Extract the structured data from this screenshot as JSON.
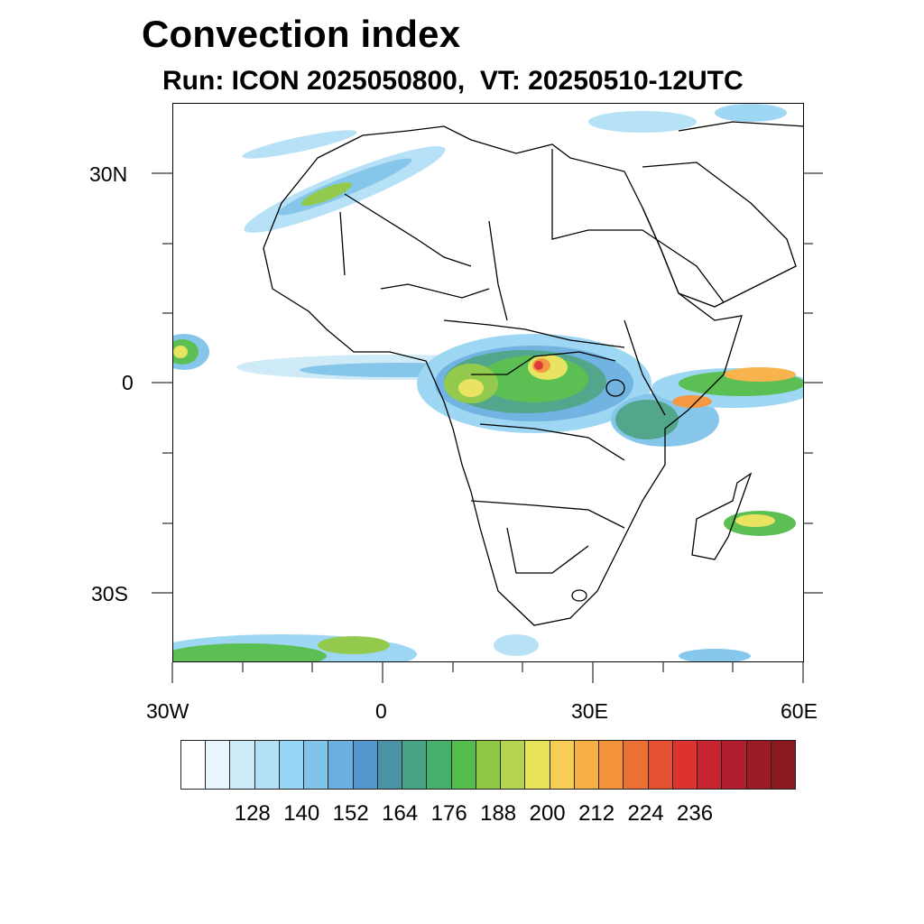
{
  "header": {
    "title": "Convection index",
    "subtitle": "Run: ICON 2025050800,  VT: 20250510-12UTC"
  },
  "axes": {
    "x_ticks": [
      "30W",
      "0",
      "30E",
      "60E"
    ],
    "y_ticks": [
      "30N",
      "0",
      "30S"
    ],
    "lon_range": [
      -30,
      60
    ],
    "lat_range": [
      -40,
      40
    ]
  },
  "colorbar": {
    "labels": [
      "128",
      "140",
      "152",
      "164",
      "176",
      "188",
      "200",
      "212",
      "224",
      "236"
    ],
    "colors": [
      "#ffffff",
      "#e9f5fc",
      "#cdeaf8",
      "#b3e0f6",
      "#99d5f4",
      "#80c4ea",
      "#6aafe0",
      "#5497cf",
      "#4a93a5",
      "#48a285",
      "#44b06c",
      "#54bc4b",
      "#8ec845",
      "#b4d34f",
      "#e7e35a",
      "#f8cd55",
      "#f8af44",
      "#f4933b",
      "#ec6f33",
      "#e45030",
      "#dc332e",
      "#c82430",
      "#b01d2e",
      "#9a1b27",
      "#8a1a1f"
    ]
  }
}
